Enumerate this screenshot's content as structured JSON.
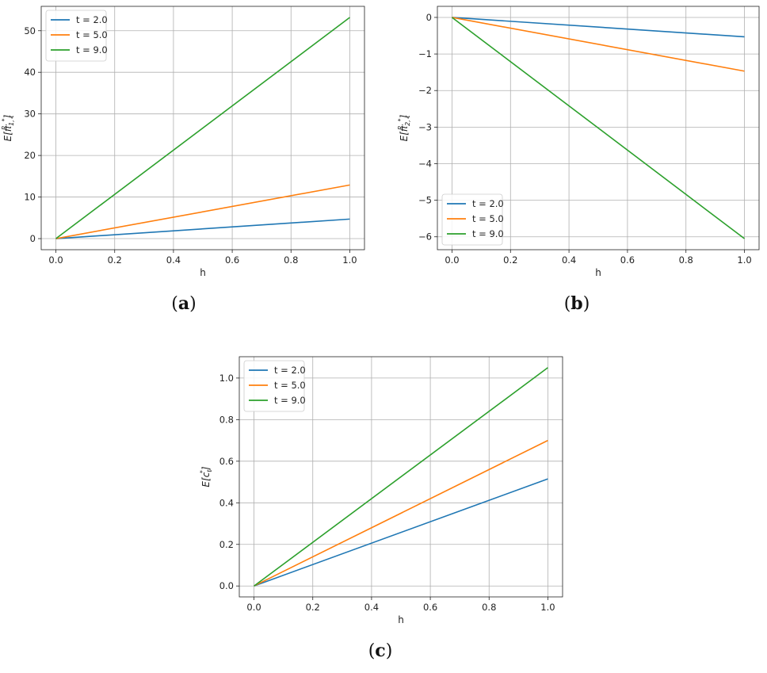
{
  "chart_data": [
    {
      "panel": "a",
      "caption_letter": "a",
      "type": "line",
      "ylabel_base": "E[π",
      "ylabel_sub": "1, t",
      "ylabel_sup": "R, *",
      "ylabel_close": "]",
      "xlabel": "h",
      "xlim": [
        0,
        1
      ],
      "ylim": [
        0,
        53.2
      ],
      "xticks": [
        "0.0",
        "0.2",
        "0.4",
        "0.6",
        "0.8",
        "1.0"
      ],
      "yticks": [
        "0",
        "10",
        "20",
        "30",
        "40",
        "50"
      ],
      "grid": true,
      "legend_position": "upper-left",
      "x": [
        0,
        1
      ],
      "series": [
        {
          "name": "t = 2.0",
          "color": "#1f77b4",
          "values": [
            0,
            4.7
          ]
        },
        {
          "name": "t = 5.0",
          "color": "#ff7f0e",
          "values": [
            0,
            12.9
          ]
        },
        {
          "name": "t = 9.0",
          "color": "#2ca02c",
          "values": [
            0,
            53.2
          ]
        }
      ]
    },
    {
      "panel": "b",
      "caption_letter": "b",
      "type": "line",
      "ylabel_base": "E[π",
      "ylabel_sub": "2, t",
      "ylabel_sup": "R, *",
      "ylabel_close": "]",
      "xlabel": "h",
      "xlim": [
        0,
        1
      ],
      "ylim": [
        -6.05,
        0
      ],
      "xticks": [
        "0.0",
        "0.2",
        "0.4",
        "0.6",
        "0.8",
        "1.0"
      ],
      "yticks": [
        "0",
        "−1",
        "−2",
        "−3",
        "−4",
        "−5",
        "−6"
      ],
      "grid": true,
      "legend_position": "lower-left",
      "x": [
        0,
        1
      ],
      "series": [
        {
          "name": "t = 2.0",
          "color": "#1f77b4",
          "values": [
            0,
            -0.53
          ]
        },
        {
          "name": "t = 5.0",
          "color": "#ff7f0e",
          "values": [
            0,
            -1.47
          ]
        },
        {
          "name": "t = 9.0",
          "color": "#2ca02c",
          "values": [
            0,
            -6.05
          ]
        }
      ]
    },
    {
      "panel": "c",
      "caption_letter": "c",
      "type": "line",
      "ylabel_base": "E[c",
      "ylabel_sub": "t",
      "ylabel_sup": "*",
      "ylabel_close": "]",
      "xlabel": "h",
      "xlim": [
        0,
        1
      ],
      "ylim": [
        0,
        1.05
      ],
      "xticks": [
        "0.0",
        "0.2",
        "0.4",
        "0.6",
        "0.8",
        "1.0"
      ],
      "yticks": [
        "0.0",
        "0.2",
        "0.4",
        "0.6",
        "0.8",
        "1.0"
      ],
      "grid": true,
      "legend_position": "upper-left",
      "x": [
        0,
        1
      ],
      "series": [
        {
          "name": "t = 2.0",
          "color": "#1f77b4",
          "values": [
            0,
            0.515
          ]
        },
        {
          "name": "t = 5.0",
          "color": "#ff7f0e",
          "values": [
            0,
            0.7
          ]
        },
        {
          "name": "t = 9.0",
          "color": "#2ca02c",
          "values": [
            0,
            1.05
          ]
        }
      ]
    }
  ]
}
